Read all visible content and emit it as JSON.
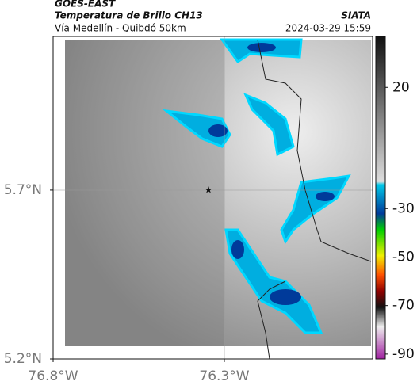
{
  "header": {
    "source": "GOES-EAST",
    "product": "Temperatura de Brillo CH13",
    "region": "Vía Medellín - Quibdó 50km",
    "agency": "SIATA",
    "timestamp": "2024-03-29 15:59"
  },
  "map": {
    "xlim": [
      -76.8,
      -75.867
    ],
    "ylim": [
      5.2,
      6.155
    ],
    "xticks": [
      {
        "value": -76.8,
        "label": "76.8°W"
      },
      {
        "value": -76.3,
        "label": "76.3°W"
      }
    ],
    "yticks": [
      {
        "value": 5.2,
        "label": "5.2°N"
      },
      {
        "value": 5.7,
        "label": "5.7°N"
      }
    ]
  },
  "colorbar": {
    "limits": [
      -92,
      41
    ],
    "ticks": [
      20,
      -30,
      -50,
      -70,
      -90
    ]
  }
}
